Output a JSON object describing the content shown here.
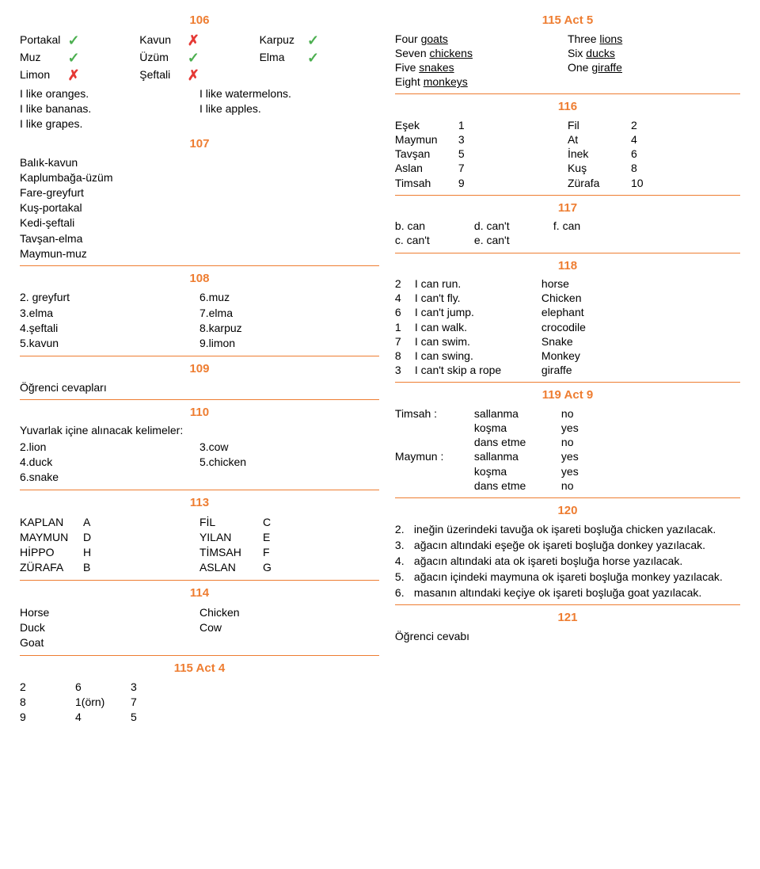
{
  "colors": {
    "accent": "#ee7d31",
    "success": "#4caf50",
    "error": "#e53935"
  },
  "left": {
    "h106": "106",
    "fruits": {
      "col1": [
        {
          "name": "Portakal",
          "mark": "check"
        },
        {
          "name": "Muz",
          "mark": "check"
        },
        {
          "name": "Limon",
          "mark": "cross"
        }
      ],
      "col2": [
        {
          "name": "Kavun",
          "mark": "cross"
        },
        {
          "name": "Üzüm",
          "mark": "check"
        },
        {
          "name": "Şeftali",
          "mark": "cross"
        }
      ],
      "col3": [
        {
          "name": "Karpuz",
          "mark": "check"
        },
        {
          "name": "Elma",
          "mark": "check"
        }
      ]
    },
    "likes": {
      "left": [
        "I like oranges.",
        "I like bananas.",
        "I like grapes."
      ],
      "right": [
        "I like watermelons.",
        "I like apples."
      ]
    },
    "h107": "107",
    "pairs107": [
      "Balık-kavun",
      "Kaplumbağa-üzüm",
      "Fare-greyfurt",
      "Kuş-portakal",
      "Kedi-şeftali",
      "Tavşan-elma",
      "Maymun-muz"
    ],
    "h108": "108",
    "s108": {
      "left": [
        "2. greyfurt",
        "3.elma",
        "4.şeftali",
        "5.kavun"
      ],
      "right": [
        "6.muz",
        "7.elma",
        "8.karpuz",
        "9.limon"
      ]
    },
    "h109": "109",
    "s109": "Öğrenci cevapları",
    "h110": "110",
    "s110_title": "Yuvarlak içine alınacak kelimeler:",
    "s110_left": [
      "2.lion",
      "4.duck",
      "6.snake"
    ],
    "s110_right": [
      "3.cow",
      "5.chicken"
    ],
    "h113": "113",
    "s113": {
      "l": [
        [
          "KAPLAN",
          "A"
        ],
        [
          "MAYMUN",
          "D"
        ],
        [
          "HİPPO",
          "H"
        ],
        [
          "ZÜRAFA",
          "B"
        ]
      ],
      "r": [
        [
          "FİL",
          "C"
        ],
        [
          "YILAN",
          "E"
        ],
        [
          "TİMSAH",
          "F"
        ],
        [
          "ASLAN",
          "G"
        ]
      ]
    },
    "h114": "114",
    "s114_left": [
      "Horse",
      "Duck",
      "Goat"
    ],
    "s114_right": [
      "Chicken",
      "Cow"
    ],
    "h115a4": "115 Act 4",
    "s115a4": [
      [
        "2",
        "6",
        "3"
      ],
      [
        "8",
        "1(örn)",
        "7"
      ],
      [
        "9",
        "4",
        "5"
      ]
    ]
  },
  "right": {
    "h115a5": "115 Act 5",
    "s115_left": [
      [
        "Four",
        "goats"
      ],
      [
        "Seven",
        "chickens"
      ],
      [
        "Five",
        "snakes"
      ],
      [
        "Eight",
        "monkeys"
      ]
    ],
    "s115_right": [
      [
        "Three",
        "lions"
      ],
      [
        "Six",
        "ducks"
      ],
      [
        "One",
        "giraffe"
      ]
    ],
    "h116": "116",
    "s116": {
      "l": [
        [
          "Eşek",
          "1"
        ],
        [
          "Maymun",
          "3"
        ],
        [
          "Tavşan",
          "5"
        ],
        [
          "Aslan",
          "7"
        ],
        [
          "Timsah",
          "9"
        ]
      ],
      "r": [
        [
          "Fil",
          "2"
        ],
        [
          "At",
          "4"
        ],
        [
          "İnek",
          "6"
        ],
        [
          "Kuş",
          "8"
        ],
        [
          "Zürafa",
          "10"
        ]
      ]
    },
    "h117": "117",
    "s117_row1": [
      "b. can",
      "d. can't",
      "f. can"
    ],
    "s117_row2": [
      "c. can't",
      "e. can't"
    ],
    "h118": "118",
    "s118": [
      [
        "2",
        "I can run.",
        "horse"
      ],
      [
        "4",
        "I can't fly.",
        "Chicken"
      ],
      [
        "6",
        "I can't jump.",
        "elephant"
      ],
      [
        "1",
        "I can walk.",
        "crocodile"
      ],
      [
        "7",
        "I can swim.",
        "Snake"
      ],
      [
        "8",
        "I can swing.",
        "Monkey"
      ],
      [
        "3",
        "I can't skip a rope",
        "giraffe"
      ]
    ],
    "h119": "119 Act 9",
    "s119_labels": [
      "Timsah   :",
      "Maymun :"
    ],
    "s119_rows": [
      [
        "sallanma",
        "no"
      ],
      [
        "koşma",
        "yes"
      ],
      [
        "dans etme",
        "no"
      ],
      [
        "sallanma",
        "yes"
      ],
      [
        "koşma",
        "yes"
      ],
      [
        "dans etme",
        "no"
      ]
    ],
    "h120": "120",
    "s120": [
      [
        "2.",
        "ineğin üzerindeki tavuğa ok işareti boşluğa  chicken yazılacak."
      ],
      [
        "3.",
        "ağacın altındaki eşeğe ok işareti boşluğa  donkey yazılacak."
      ],
      [
        "4.",
        "ağacın altındaki ata ok işareti boşluğa  horse yazılacak."
      ],
      [
        "5.",
        "ağacın içindeki maymuna ok işareti boşluğa  monkey yazılacak."
      ],
      [
        "6.",
        "masanın altındaki keçiye ok işareti boşluğa  goat yazılacak."
      ]
    ],
    "h121": "121",
    "s121": "Öğrenci cevabı"
  }
}
